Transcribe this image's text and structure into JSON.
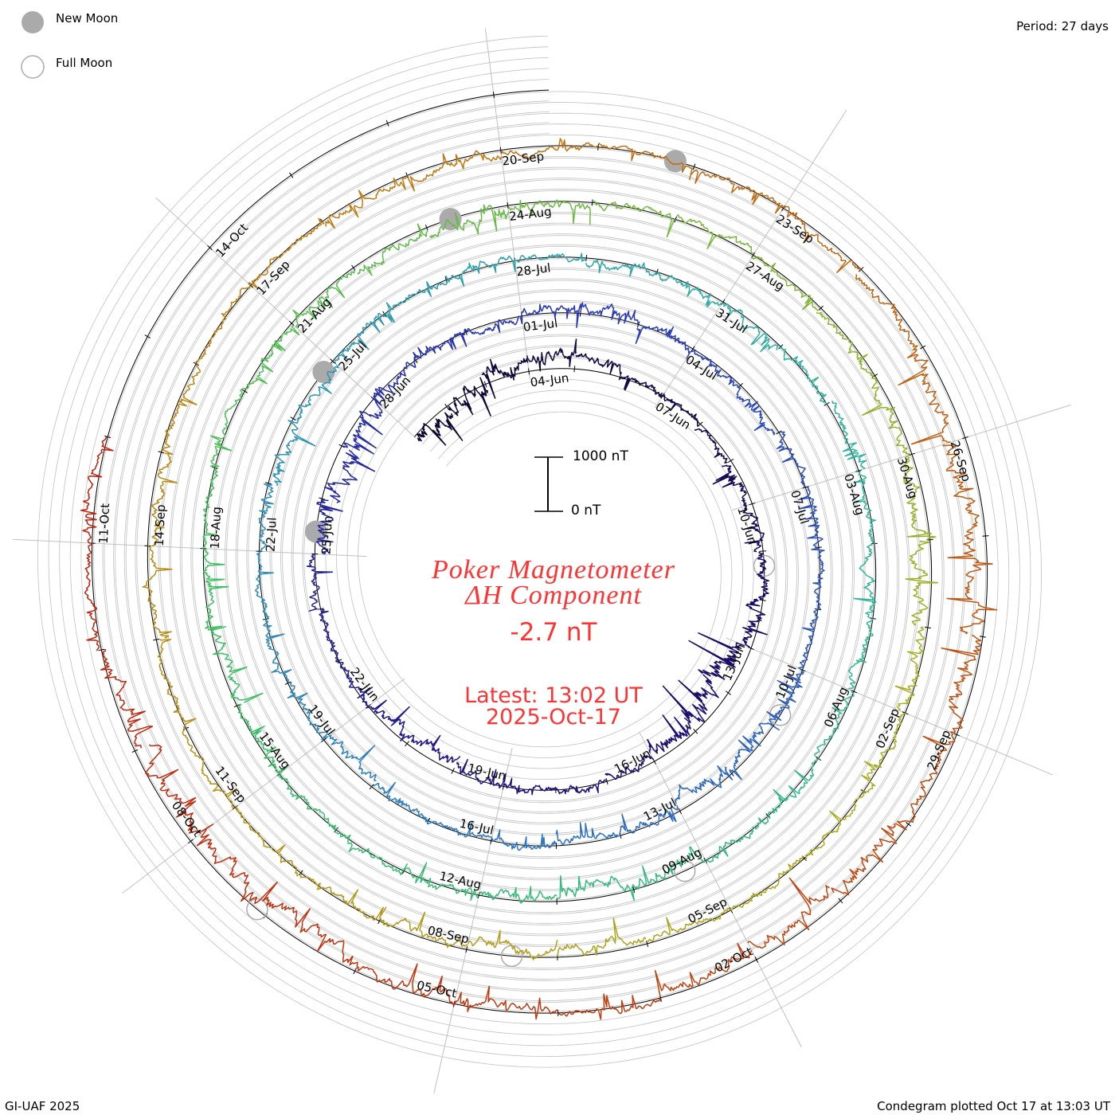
{
  "legend": {
    "new_moon": "New Moon",
    "full_moon": "Full Moon"
  },
  "period_label": "Period: 27 days",
  "footer_left": "GI-UAF 2025",
  "footer_right": "Condegram plotted Oct 17 at 13:03 UT",
  "scale": {
    "top_label": "1000 nT",
    "bottom_label": "0 nT"
  },
  "title": {
    "line1": "Poker Magnetometer",
    "line2": "ΔH Component",
    "value": "-2.7 nT",
    "latest": "Latest: 13:02 UT",
    "date": "2025-Oct-17"
  },
  "colors": {
    "text_red": "#ff3333",
    "moon": "#aaaaaa",
    "grid": "#c0c0c0",
    "gradient": [
      "#0d0630",
      "#1e0f78",
      "#2a3ab8",
      "#2f7fc0",
      "#30b3a0",
      "#3cc060",
      "#a8b020",
      "#c08010",
      "#c04010",
      "#c00808"
    ]
  },
  "chart_data": {
    "type": "line",
    "subtype": "condegram-spiral",
    "title": "Poker Magnetometer ΔH Component",
    "period_days": 27,
    "start_date": "2025-06-01",
    "end_day": 138.543,
    "scale_nT": 1000,
    "date_labels": [
      "04-Jun",
      "07-Jun",
      "10-Jun",
      "13-Jun",
      "16-Jun",
      "19-Jun",
      "22-Jun",
      "25-Jun",
      "28-Jun",
      "01-Jul",
      "04-Jul",
      "07-Jul",
      "10-Jul",
      "13-Jul",
      "16-Jul",
      "19-Jul",
      "22-Jul",
      "25-Jul",
      "28-Jul",
      "31-Jul",
      "03-Aug",
      "06-Aug",
      "09-Aug",
      "12-Aug",
      "15-Aug",
      "18-Aug",
      "21-Aug",
      "24-Aug",
      "27-Aug",
      "30-Aug",
      "02-Sep",
      "05-Sep",
      "08-Sep",
      "11-Sep",
      "14-Sep",
      "17-Sep",
      "20-Sep",
      "23-Sep",
      "26-Sep",
      "29-Sep",
      "02-Oct",
      "05-Oct",
      "08-Oct",
      "11-Oct",
      "14-Oct"
    ],
    "label_first_day": 3,
    "label_step_days": 3,
    "new_moon_days": [
      24.4,
      53.8,
      83.3,
      112.8
    ],
    "full_moon_days": [
      10.3,
      39.8,
      69.3,
      98.5,
      128.1
    ],
    "daily_mean_dH_nT": [
      -150,
      -100,
      150,
      250,
      200,
      50,
      0,
      -50,
      -100,
      -50,
      0,
      -100,
      -350,
      -300,
      -150,
      -50,
      0,
      -50,
      -100,
      -150,
      -100,
      -50,
      0,
      50,
      -100,
      -200,
      -150,
      -50,
      0,
      -50,
      50,
      100,
      0,
      -50,
      -100,
      0,
      50,
      0,
      -50,
      0,
      -100,
      -150,
      -100,
      -50,
      0,
      0,
      -50,
      -100,
      -50,
      0,
      0,
      -50,
      -100,
      -100,
      -50,
      0,
      50,
      0,
      -50,
      -50,
      -50,
      0,
      50,
      0,
      -100,
      -50,
      0,
      50,
      0,
      -100,
      -150,
      -100,
      0,
      50,
      0,
      -50,
      -100,
      -50,
      0,
      50,
      0,
      -50,
      -100,
      -150,
      -100,
      0,
      50,
      0,
      -50,
      -100,
      -150,
      -200,
      -100,
      0,
      50,
      0,
      -50,
      -100,
      -150,
      -100,
      -50,
      0,
      50,
      0,
      -50,
      -100,
      -50,
      0,
      0,
      -50,
      -100,
      -50,
      0,
      0,
      -50,
      -100,
      -200,
      -250,
      -300,
      -200,
      -100,
      -150,
      -200,
      -100,
      0,
      -50,
      -100,
      -200,
      -250,
      -200,
      -100,
      50,
      100
    ],
    "daily_range_nT": [
      700,
      600,
      500,
      400,
      300,
      250,
      200,
      200,
      300,
      350,
      400,
      500,
      900,
      800,
      500,
      300,
      250,
      250,
      300,
      400,
      350,
      300,
      250,
      300,
      500,
      600,
      500,
      300,
      250,
      300,
      300,
      350,
      300,
      250,
      300,
      250,
      300,
      250,
      300,
      300,
      400,
      450,
      400,
      300,
      250,
      250,
      300,
      400,
      350,
      300,
      250,
      300,
      400,
      350,
      300,
      250,
      250,
      250,
      300,
      300,
      300,
      250,
      300,
      250,
      400,
      350,
      250,
      300,
      300,
      450,
      500,
      400,
      300,
      250,
      250,
      300,
      400,
      350,
      250,
      300,
      250,
      300,
      400,
      450,
      400,
      300,
      250,
      250,
      300,
      400,
      500,
      550,
      400,
      300,
      250,
      250,
      300,
      400,
      450,
      400,
      300,
      250,
      250,
      250,
      300,
      350,
      300,
      250,
      250,
      300,
      350,
      300,
      250,
      250,
      300,
      400,
      600,
      700,
      800,
      600,
      450,
      500,
      600,
      450,
      300,
      350,
      450,
      600,
      700,
      600,
      400,
      300,
      250
    ]
  }
}
